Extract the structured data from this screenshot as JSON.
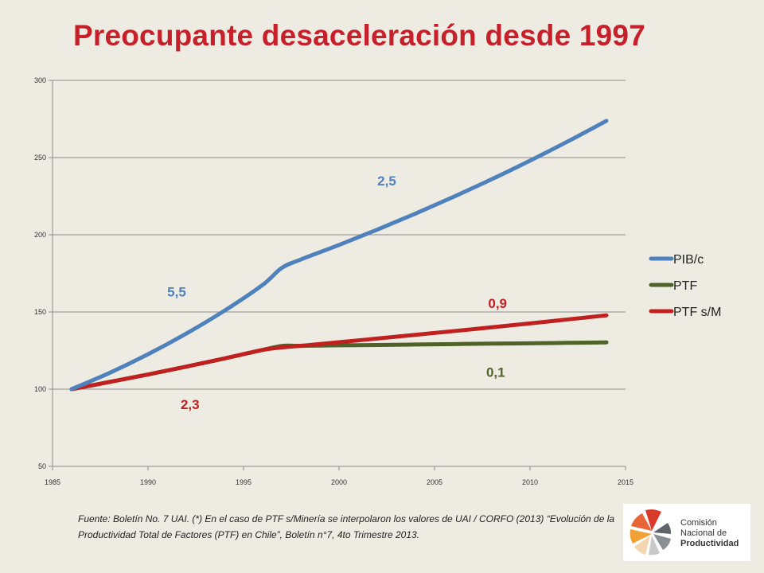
{
  "title": "Preocupante desaceleración desde 1997",
  "chart_data": {
    "type": "line",
    "title": "Preocupante desaceleración desde 1997",
    "xlim": [
      1985,
      2015
    ],
    "ylim": [
      50,
      300
    ],
    "x_ticks": [
      "1985",
      "1990",
      "1995",
      "2000",
      "2005",
      "2010",
      "2015"
    ],
    "y_ticks": [
      "50",
      "100",
      "150",
      "200",
      "250",
      "300"
    ],
    "grid": "horizontal",
    "legend_position": "right",
    "series": [
      {
        "name": "PIB/c",
        "color": "#4f81bd",
        "x": [
          1986,
          1988,
          1990,
          1992,
          1994,
          1996,
          1997,
          1998,
          2000,
          2002,
          2004,
          2006,
          2008,
          2010,
          2012,
          2014
        ],
        "values": [
          100,
          110.6,
          122.6,
          136,
          150.8,
          167.5,
          178.5,
          184,
          193.4,
          203.3,
          213.7,
          224.6,
          236,
          248,
          260.6,
          273.8
        ]
      },
      {
        "name": "PTF",
        "color": "#4f6228",
        "x": [
          1986,
          1988,
          1990,
          1992,
          1994,
          1996,
          1997,
          1998,
          2000,
          2002,
          2004,
          2006,
          2008,
          2010,
          2012,
          2014
        ],
        "values": [
          100,
          104.7,
          109.5,
          114.6,
          119.9,
          125.4,
          128,
          128.1,
          128.4,
          128.6,
          128.9,
          129.2,
          129.5,
          129.7,
          130,
          130.3
        ]
      },
      {
        "name": "PTF s/M",
        "color": "#c0201f",
        "x": [
          1986,
          1988,
          1990,
          1992,
          1994,
          1996,
          1997,
          1998,
          2000,
          2002,
          2004,
          2006,
          2008,
          2010,
          2012,
          2014
        ],
        "values": [
          100,
          104.7,
          109.5,
          114.6,
          119.9,
          125.4,
          127,
          128.1,
          130.4,
          132.8,
          135.2,
          137.6,
          140.1,
          142.6,
          145.2,
          147.8
        ]
      }
    ],
    "annotations": [
      {
        "text": "5,5",
        "x": 1991.5,
        "y": 160,
        "color": "#4f81bd"
      },
      {
        "text": "2,5",
        "x": 2002.5,
        "y": 232,
        "color": "#4f81bd"
      },
      {
        "text": "2,3",
        "x": 1992.2,
        "y": 87,
        "color": "#c0201f"
      },
      {
        "text": "0,9",
        "x": 2008.3,
        "y": 152.5,
        "color": "#c0201f"
      },
      {
        "text": "0,1",
        "x": 2008.2,
        "y": 108,
        "color": "#4f6228"
      }
    ]
  },
  "source": "Fuente: Boletín No. 7 UAI. (*) En el caso de PTF s/Minería se interpolaron los valores de UAI / CORFO (2013) “Evolución de la Productividad Total de Factores (PTF) en Chile”, Boletín n°7, 4to Trimestre 2013.",
  "logo": {
    "line1": "Comisión",
    "line2": "Nacional de",
    "line3": "Productividad"
  }
}
